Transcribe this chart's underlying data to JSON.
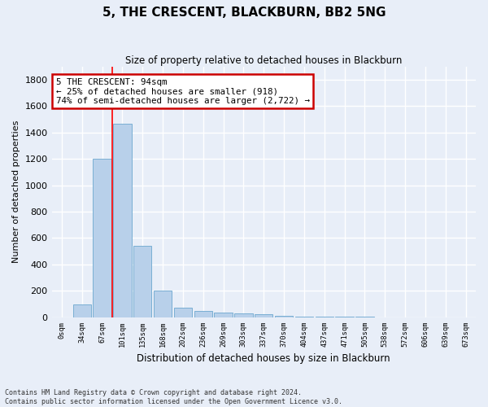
{
  "title": "5, THE CRESCENT, BLACKBURN, BB2 5NG",
  "subtitle": "Size of property relative to detached houses in Blackburn",
  "xlabel": "Distribution of detached houses by size in Blackburn",
  "ylabel": "Number of detached properties",
  "bin_labels": [
    "0sqm",
    "34sqm",
    "67sqm",
    "101sqm",
    "135sqm",
    "168sqm",
    "202sqm",
    "236sqm",
    "269sqm",
    "303sqm",
    "337sqm",
    "370sqm",
    "404sqm",
    "437sqm",
    "471sqm",
    "505sqm",
    "538sqm",
    "572sqm",
    "606sqm",
    "639sqm",
    "673sqm"
  ],
  "bar_values": [
    0,
    100,
    1200,
    1465,
    540,
    205,
    70,
    48,
    38,
    30,
    22,
    13,
    8,
    5,
    3,
    2,
    1,
    1,
    0,
    0,
    0
  ],
  "bar_color": "#b8d0ea",
  "bar_edgecolor": "#7aafd4",
  "vline_x": 2.5,
  "annotation_text": "5 THE CRESCENT: 94sqm\n← 25% of detached houses are smaller (918)\n74% of semi-detached houses are larger (2,722) →",
  "annotation_box_facecolor": "white",
  "annotation_box_edgecolor": "#cc0000",
  "ylim": [
    0,
    1900
  ],
  "yticks": [
    0,
    200,
    400,
    600,
    800,
    1000,
    1200,
    1400,
    1600,
    1800
  ],
  "footer_line1": "Contains HM Land Registry data © Crown copyright and database right 2024.",
  "footer_line2": "Contains public sector information licensed under the Open Government Licence v3.0.",
  "bg_color": "#e8eef8",
  "grid_color": "white"
}
